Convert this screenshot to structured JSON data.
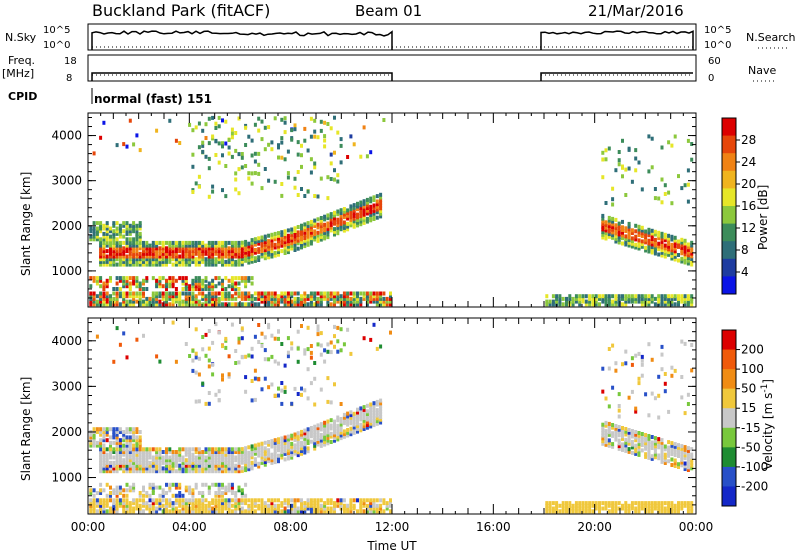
{
  "header": {
    "station": "Buckland Park (fitACF)",
    "beam": "Beam 01",
    "date": "21/Mar/2016"
  },
  "panels": {
    "nsky_label": "N.Sky",
    "nsky_ticks": [
      "10^5",
      "10^0"
    ],
    "nsearch_label": "N.Search",
    "nsearch_ticks": [
      "10^5",
      "10^0"
    ],
    "freq_label": "Freq.",
    "freq_unit": "[MHz]",
    "freq_ticks": [
      "18",
      "8"
    ],
    "nave_label": "Nave",
    "nave_ticks": [
      "60",
      "0"
    ],
    "cpid_label": "CPID",
    "cpid_text": "normal (fast) 151"
  },
  "chart_data": [
    {
      "type": "heatmap",
      "name": "power",
      "ylabel": "Slant Range [km]",
      "yticks": [
        "1000",
        "2000",
        "3000",
        "4000"
      ],
      "ylim": [
        200,
        4500
      ],
      "xlim": [
        0,
        24
      ],
      "xticks": [
        "00:00",
        "04:00",
        "08:00",
        "12:00",
        "16:00",
        "20:00",
        "00:00"
      ],
      "colorbar_label": "Power [dB]",
      "colorbar_ticks": [
        "28",
        "24",
        "20",
        "16",
        "12",
        "8",
        "4"
      ],
      "colors": [
        "#0a14e6",
        "#1e3ca0",
        "#2e6e78",
        "#3c8c5a",
        "#8cc83c",
        "#e6e628",
        "#f0b41e",
        "#f08214",
        "#e6460a",
        "#dc0000"
      ]
    },
    {
      "type": "heatmap",
      "name": "velocity",
      "ylabel": "Slant Range [km]",
      "yticks": [
        "1000",
        "2000",
        "3000",
        "4000"
      ],
      "ylim": [
        200,
        4500
      ],
      "xlim": [
        0,
        24
      ],
      "xticks": [
        "00:00",
        "04:00",
        "08:00",
        "12:00",
        "16:00",
        "20:00",
        "00:00"
      ],
      "xlabel": "Time UT",
      "colorbar_label": "Velocity [m s^-1]",
      "colorbar_ticks": [
        "200",
        "100",
        "50",
        "15",
        "-15",
        "-50",
        "-100",
        "-200"
      ],
      "colors": [
        "#1428c8",
        "#2850c8",
        "#1e8c32",
        "#78c83c",
        "#c8c8c8",
        "#f0c83c",
        "#f08c14",
        "#f05a0a",
        "#dc0000"
      ]
    }
  ]
}
